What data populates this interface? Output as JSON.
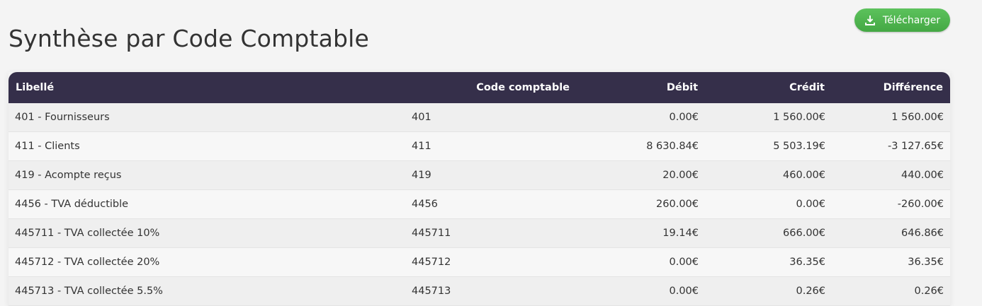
{
  "header": {
    "title": "Synthèse par Code Comptable",
    "button": "Télécharger"
  },
  "table": {
    "columns": [
      "Libellé",
      "Code comptable",
      "Débit",
      "Crédit",
      "Différence"
    ],
    "rows": [
      [
        "401 - Fournisseurs",
        "401",
        "0.00€",
        "1 560.00€",
        "1 560.00€"
      ],
      [
        "411 - Clients",
        "411",
        "8 630.84€",
        "5 503.19€",
        "-3 127.65€"
      ],
      [
        "419 - Acompte reçus",
        "419",
        "20.00€",
        "460.00€",
        "440.00€"
      ],
      [
        "4456 - TVA déductible",
        "4456",
        "260.00€",
        "0.00€",
        "-260.00€"
      ],
      [
        "445711 - TVA collectée 10%",
        "445711",
        "19.14€",
        "666.00€",
        "646.86€"
      ],
      [
        "445712 - TVA collectée 20%",
        "445712",
        "0.00€",
        "36.35€",
        "36.35€"
      ],
      [
        "445713 - TVA collectée 5.5%",
        "445713",
        "0.00€",
        "0.26€",
        "0.26€"
      ]
    ]
  }
}
